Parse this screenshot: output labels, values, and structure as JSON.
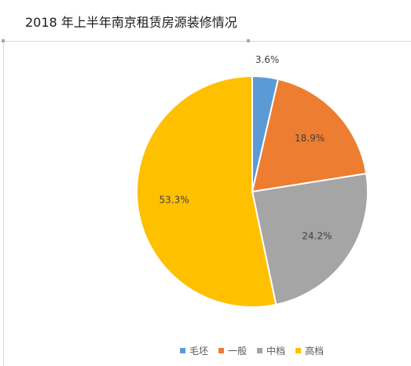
{
  "chart_data": {
    "type": "pie",
    "title": "2018 年上半年南京租赁房源装修情况",
    "categories": [
      "毛坯",
      "一般",
      "中档",
      "高档"
    ],
    "values": [
      3.6,
      18.9,
      24.2,
      53.3
    ],
    "labels": [
      "3.6%",
      "18.9%",
      "24.2%",
      "53.3%"
    ],
    "colors": [
      "#5b9bd5",
      "#ed7d31",
      "#a5a5a5",
      "#ffc000"
    ],
    "legend_position": "bottom"
  }
}
